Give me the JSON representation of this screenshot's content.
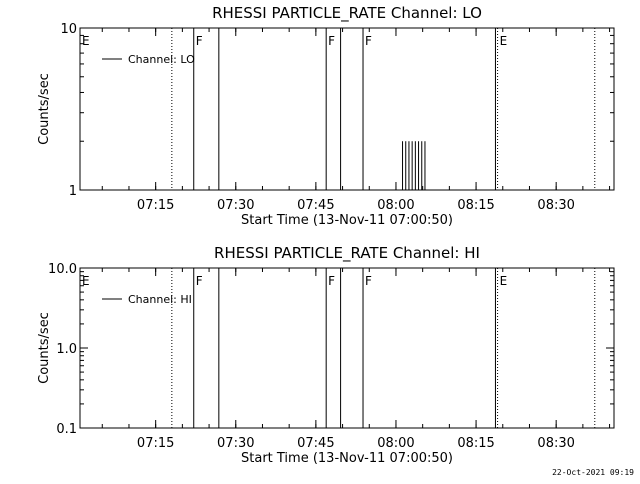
{
  "chart_data": [
    {
      "type": "line",
      "title": "RHESSI PARTICLE_RATE Channel: LO",
      "xlabel": "Start Time (13-Nov-11 07:00:50)",
      "ylabel": "Counts/sec",
      "yscale": "log",
      "ylim": [
        1,
        10
      ],
      "yticks": [
        1,
        10
      ],
      "ytick_labels": [
        "1",
        "10"
      ],
      "xlim_minutes": [
        0,
        100
      ],
      "xticks": [
        14.17,
        29.17,
        44.17,
        59.17,
        74.17,
        89.17
      ],
      "xtick_labels": [
        "07:15",
        "07:30",
        "07:45",
        "08:00",
        "08:15",
        "08:30"
      ],
      "grid": false,
      "legend_position": "top-left",
      "series": [
        {
          "name": "Channel: LO",
          "x": [
            60.1,
            60.4,
            60.7,
            61.0,
            61.3,
            61.6,
            61.9,
            62.2,
            62.5,
            62.8,
            63.1,
            63.4,
            63.7,
            64.0,
            64.3,
            64.6
          ],
          "y": [
            1,
            2,
            1,
            2,
            1,
            2,
            1,
            2,
            1,
            2,
            1,
            2,
            1,
            2,
            1,
            2
          ]
        }
      ],
      "event_markers": {
        "solid": [
          21.3,
          26.0,
          46.1,
          48.8,
          53.0,
          77.8
        ],
        "dotted": [
          17.2,
          78.2,
          96.4
        ],
        "labels": [
          {
            "text": "E",
            "x": 0.0
          },
          {
            "text": "F",
            "x": 21.3
          },
          {
            "text": "F",
            "x": 46.1
          },
          {
            "text": "F",
            "x": 53.0
          },
          {
            "text": "E",
            "x": 78.2
          }
        ]
      }
    },
    {
      "type": "line",
      "title": "RHESSI PARTICLE_RATE Channel: HI",
      "xlabel": "Start Time (13-Nov-11 07:00:50)",
      "ylabel": "Counts/sec",
      "yscale": "log",
      "ylim": [
        0.1,
        10
      ],
      "yticks": [
        0.1,
        1,
        10
      ],
      "ytick_labels": [
        "0.1",
        "1.0",
        "10.0"
      ],
      "xlim_minutes": [
        0,
        100
      ],
      "xticks": [
        14.17,
        29.17,
        44.17,
        59.17,
        74.17,
        89.17
      ],
      "xtick_labels": [
        "07:15",
        "07:30",
        "07:45",
        "08:00",
        "08:15",
        "08:30"
      ],
      "grid": false,
      "legend_position": "top-left",
      "series": [
        {
          "name": "Channel: HI",
          "x": [],
          "y": []
        }
      ],
      "event_markers": {
        "solid": [
          21.3,
          26.0,
          46.1,
          48.8,
          53.0,
          77.8
        ],
        "dotted": [
          17.2,
          78.2,
          96.4
        ],
        "labels": [
          {
            "text": "E",
            "x": 0.0
          },
          {
            "text": "F",
            "x": 21.3
          },
          {
            "text": "F",
            "x": 46.1
          },
          {
            "text": "F",
            "x": 53.0
          },
          {
            "text": "E",
            "x": 78.2
          }
        ]
      }
    }
  ],
  "footer": {
    "timestamp": "22-Oct-2021 09:19"
  }
}
